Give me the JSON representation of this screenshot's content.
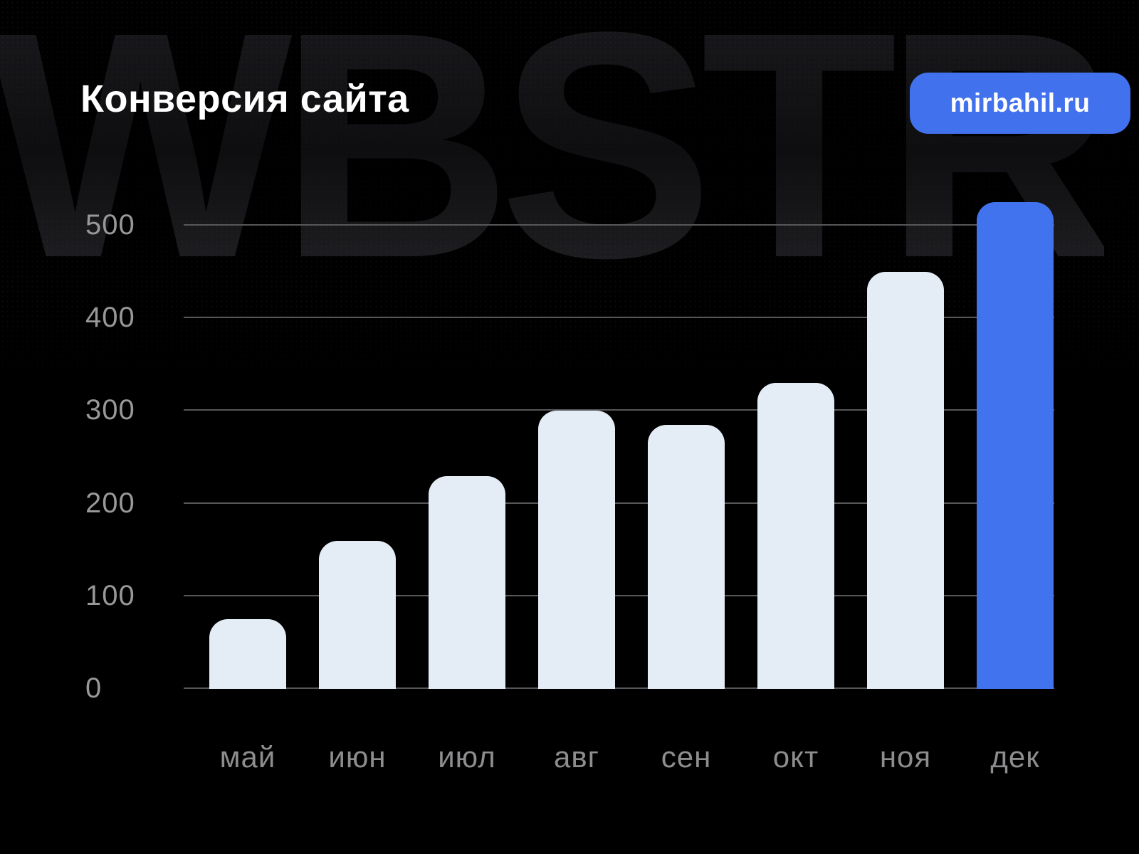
{
  "page": {
    "title": "Конверсия сайта"
  },
  "badge": {
    "label": "mirbahil.ru"
  },
  "watermark": {
    "text": "WBSTR"
  },
  "colors": {
    "background": "#000000",
    "title_text": "#ffffff",
    "badge_bg": "#4171ec",
    "badge_text": "#ffffff",
    "bar_default": "#e4ecf5",
    "bar_highlight": "#4273ee",
    "gridline": "#57575a",
    "y_label": "#98989a",
    "x_label": "#8d8d8f"
  },
  "chart_data": {
    "type": "bar",
    "title": "Конверсия сайта",
    "categories": [
      "май",
      "июн",
      "июл",
      "авг",
      "сен",
      "окт",
      "ноя",
      "дек"
    ],
    "values": [
      75,
      160,
      230,
      300,
      285,
      330,
      450,
      525
    ],
    "highlight_category": "дек",
    "xlabel": "",
    "ylabel": "",
    "yticks": [
      0,
      100,
      200,
      300,
      400,
      500
    ],
    "ylim": [
      0,
      500
    ],
    "grid": true,
    "legend": false
  }
}
